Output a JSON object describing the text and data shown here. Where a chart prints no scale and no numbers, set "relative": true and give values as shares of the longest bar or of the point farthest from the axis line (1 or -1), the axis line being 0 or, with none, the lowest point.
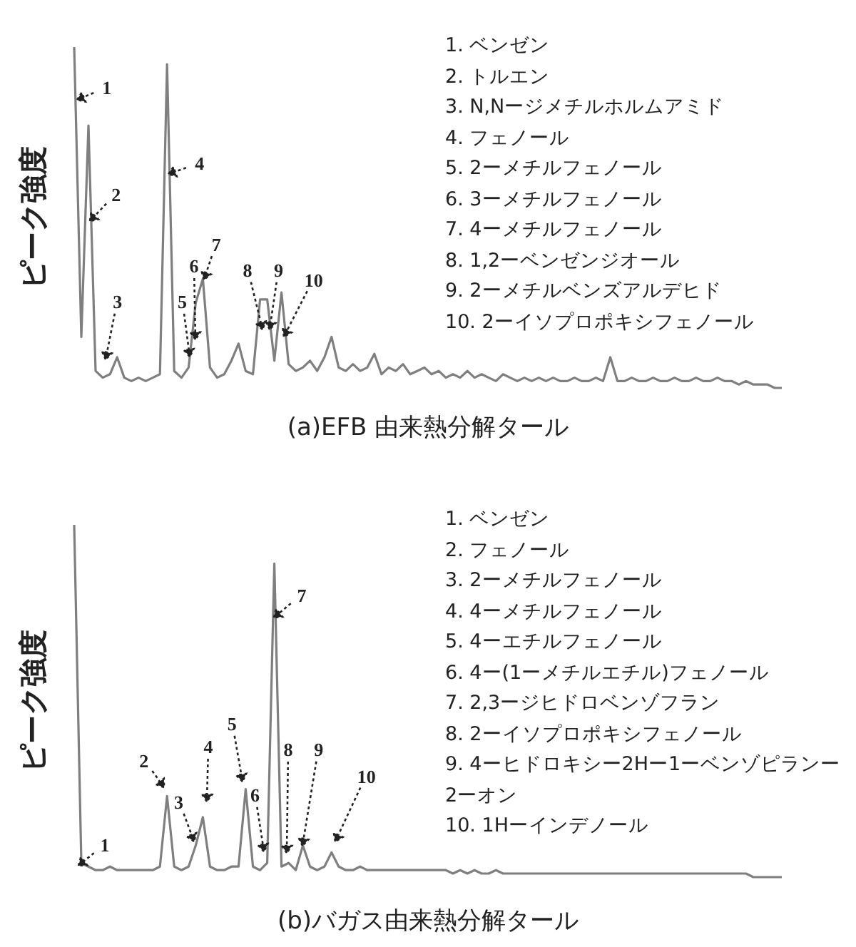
{
  "chart_data": [
    {
      "type": "line",
      "relative": true,
      "title": "(a)EFB 由来熱分解タール",
      "ylabel": "ピーク強度",
      "grid": false,
      "marker": "none",
      "line_style": "solid",
      "categories": [
        null,
        null,
        null,
        null,
        null,
        null,
        null,
        null,
        null,
        null,
        null,
        null,
        null,
        null,
        null,
        null,
        null,
        null,
        null,
        null,
        null,
        null,
        null,
        null,
        null,
        null,
        null,
        null,
        null,
        null,
        null,
        null,
        null,
        null,
        null,
        null,
        null,
        null,
        null,
        null,
        null,
        null,
        null,
        null,
        null,
        null,
        null,
        null,
        null,
        null,
        null,
        null,
        null,
        null,
        null,
        null,
        null,
        null,
        null,
        null,
        null,
        null,
        null,
        null,
        null,
        null,
        null,
        null,
        null,
        null,
        null,
        null,
        null,
        null,
        null,
        null,
        null,
        null,
        null,
        null,
        null,
        null,
        null,
        null,
        null,
        null,
        null,
        null,
        null,
        null,
        null,
        null,
        null,
        null,
        null,
        null,
        null,
        null,
        null,
        null
      ],
      "series": [
        {
          "color": "#7f7f7f",
          "values": [
            1.0,
            0.15,
            0.77,
            0.05,
            0.03,
            0.04,
            0.09,
            0.03,
            0.02,
            0.03,
            0.02,
            0.03,
            0.04,
            0.95,
            0.05,
            0.03,
            0.06,
            0.25,
            0.32,
            0.06,
            0.03,
            0.04,
            0.08,
            0.13,
            0.05,
            0.04,
            0.26,
            0.26,
            0.08,
            0.28,
            0.07,
            0.05,
            0.06,
            0.08,
            0.05,
            0.09,
            0.15,
            0.06,
            0.05,
            0.07,
            0.05,
            0.06,
            0.1,
            0.04,
            0.06,
            0.05,
            0.07,
            0.04,
            0.05,
            0.06,
            0.04,
            0.05,
            0.03,
            0.04,
            0.03,
            0.05,
            0.03,
            0.04,
            0.03,
            0.02,
            0.04,
            0.03,
            0.02,
            0.03,
            0.02,
            0.03,
            0.02,
            0.03,
            0.02,
            0.02,
            0.03,
            0.02,
            0.02,
            0.03,
            0.02,
            0.09,
            0.02,
            0.02,
            0.03,
            0.02,
            0.02,
            0.03,
            0.02,
            0.02,
            0.03,
            0.02,
            0.02,
            0.03,
            0.02,
            0.02,
            0.03,
            0.02,
            0.02,
            0.01,
            0.02,
            0.01,
            0.01,
            0.01,
            0.0,
            0.0
          ]
        }
      ],
      "annotations": [
        "1",
        "2",
        "3",
        "4",
        "5",
        "6",
        "7",
        "8",
        "9",
        "10",
        "1. ベンゼン",
        "2. トルエン",
        "3. N,Nージメチルホルムアミド",
        "4. フェノール",
        "5. 2ーメチルフェノール",
        "6. 3ーメチルフェノール",
        "7. 4ーメチルフェノール",
        "8. 1,2ーベンゼンジオール",
        "9. 2ーメチルベンズアルデヒド",
        "10. 2ーイソプロポキシフェノール"
      ]
    },
    {
      "type": "line",
      "relative": true,
      "title": "(b)バガス由来熱分解タール",
      "ylabel": "ピーク強度",
      "grid": false,
      "marker": "none",
      "line_style": "solid",
      "categories": [
        null,
        null,
        null,
        null,
        null,
        null,
        null,
        null,
        null,
        null,
        null,
        null,
        null,
        null,
        null,
        null,
        null,
        null,
        null,
        null,
        null,
        null,
        null,
        null,
        null,
        null,
        null,
        null,
        null,
        null,
        null,
        null,
        null,
        null,
        null,
        null,
        null,
        null,
        null,
        null,
        null,
        null,
        null,
        null,
        null,
        null,
        null,
        null,
        null,
        null,
        null,
        null,
        null,
        null,
        null,
        null,
        null,
        null,
        null,
        null,
        null,
        null,
        null,
        null,
        null,
        null,
        null,
        null,
        null,
        null,
        null,
        null,
        null,
        null,
        null,
        null,
        null,
        null,
        null,
        null,
        null,
        null,
        null,
        null,
        null,
        null,
        null,
        null,
        null,
        null,
        null,
        null,
        null,
        null,
        null,
        null,
        null,
        null,
        null,
        null
      ],
      "series": [
        {
          "color": "#7f7f7f",
          "values": [
            1.0,
            0.04,
            0.03,
            0.02,
            0.02,
            0.03,
            0.02,
            0.02,
            0.02,
            0.02,
            0.02,
            0.02,
            0.03,
            0.23,
            0.03,
            0.02,
            0.03,
            0.09,
            0.17,
            0.03,
            0.02,
            0.02,
            0.03,
            0.03,
            0.25,
            0.03,
            0.02,
            0.04,
            0.89,
            0.03,
            0.04,
            0.02,
            0.09,
            0.03,
            0.02,
            0.03,
            0.07,
            0.03,
            0.02,
            0.02,
            0.03,
            0.02,
            0.02,
            0.02,
            0.02,
            0.02,
            0.02,
            0.02,
            0.02,
            0.02,
            0.02,
            0.02,
            0.02,
            0.01,
            0.02,
            0.01,
            0.02,
            0.01,
            0.01,
            0.02,
            0.01,
            0.01,
            0.01,
            0.01,
            0.01,
            0.01,
            0.01,
            0.01,
            0.01,
            0.01,
            0.01,
            0.01,
            0.01,
            0.01,
            0.01,
            0.01,
            0.01,
            0.01,
            0.01,
            0.01,
            0.01,
            0.01,
            0.01,
            0.01,
            0.01,
            0.01,
            0.01,
            0.01,
            0.01,
            0.01,
            0.01,
            0.01,
            0.01,
            0.01,
            0.01,
            0.0,
            0.0,
            0.0,
            0.0,
            0.0
          ]
        }
      ],
      "annotations": [
        "1",
        "2",
        "3",
        "4",
        "5",
        "6",
        "7",
        "8",
        "9",
        "10",
        "1. ベンゼン",
        "2. フェノール",
        "3. 2ーメチルフェノール",
        "4. 4ーメチルフェノール",
        "5. 4ーエチルフェノール",
        "6. 4ー(1ーメチルエチル)フェノール",
        "7. 2,3ージヒドロベンゾフラン",
        "8. 2ーイソプロポキシフェノール",
        "9. 4ーヒドロキシー2Hー1ーベンゾピランー2ーオン",
        "10. 1Hーインデノール"
      ]
    }
  ]
}
